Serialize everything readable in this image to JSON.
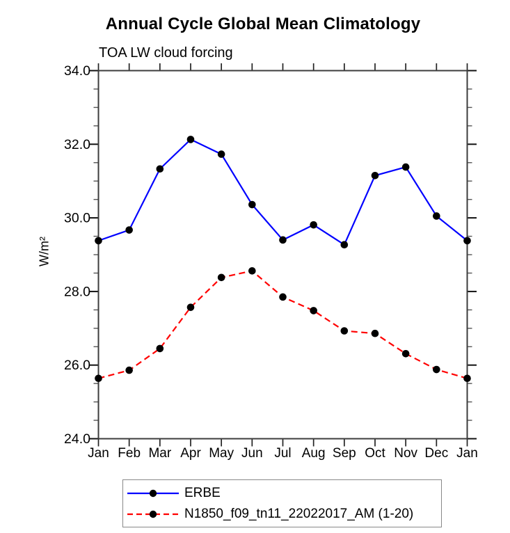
{
  "header": {
    "title": "Annual Cycle Global Mean Climatology",
    "subtitle": "TOA LW cloud forcing"
  },
  "axes": {
    "ylabel": "W/m²"
  },
  "chart_data": {
    "type": "line",
    "title": "Annual Cycle Global Mean Climatology",
    "subtitle": "TOA LW cloud forcing",
    "ylabel": "W/m²",
    "x_categories": [
      "Jan",
      "Feb",
      "Mar",
      "Apr",
      "May",
      "Jun",
      "Jul",
      "Aug",
      "Sep",
      "Oct",
      "Nov",
      "Dec",
      "Jan"
    ],
    "ylim": [
      24.0,
      34.0
    ],
    "ytick_major_interval": 2.0,
    "ytick_minor_interval": 0.5,
    "ytick_labels": [
      "24.0",
      "26.0",
      "28.0",
      "30.0",
      "32.0",
      "34.0"
    ],
    "grid": "off",
    "legend_position": "bottom",
    "series": [
      {
        "name": "ERBE",
        "color": "#0000ff",
        "line_style": "solid",
        "marker": "filled-circle",
        "marker_color": "#000000",
        "values": [
          29.38,
          29.67,
          31.33,
          32.13,
          31.73,
          30.36,
          29.4,
          29.81,
          29.27,
          31.15,
          31.38,
          30.05,
          29.38
        ]
      },
      {
        "name": "N1850_f09_tn11_22022017_AM (1-20)",
        "color": "#ff0000",
        "line_style": "dashed",
        "marker": "filled-circle",
        "marker_color": "#000000",
        "values": [
          25.64,
          25.86,
          26.45,
          27.57,
          28.38,
          28.56,
          27.85,
          27.48,
          26.93,
          26.86,
          26.31,
          25.88,
          25.64
        ]
      }
    ]
  }
}
